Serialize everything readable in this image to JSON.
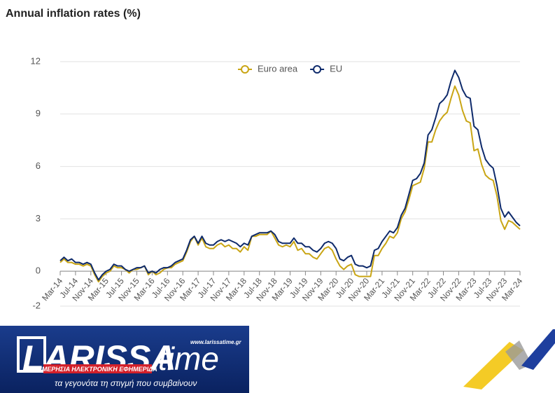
{
  "chart_data": {
    "type": "line",
    "title": "Annual inflation rates (%)",
    "categories": [
      "Mar-14",
      null,
      null,
      null,
      "Jul-14",
      null,
      null,
      null,
      "Nov-14",
      null,
      null,
      null,
      "Mar-15",
      null,
      null,
      null,
      "Jul-15",
      null,
      null,
      null,
      "Nov-15",
      null,
      null,
      null,
      "Mar-16",
      null,
      null,
      null,
      "Jul-16",
      null,
      null,
      null,
      "Nov-16",
      null,
      null,
      null,
      "Mar-17",
      null,
      null,
      null,
      "Jul-17",
      null,
      null,
      null,
      "Nov-17",
      null,
      null,
      null,
      "Mar-18",
      null,
      null,
      null,
      "Jul-18",
      null,
      null,
      null,
      "Nov-18",
      null,
      null,
      null,
      "Mar-19",
      null,
      null,
      null,
      "Jul-19",
      null,
      null,
      null,
      "Nov-19",
      null,
      null,
      null,
      "Mar-20",
      null,
      null,
      null,
      "Jul-20",
      null,
      null,
      null,
      "Nov-20",
      null,
      null,
      null,
      "Mar-21",
      null,
      null,
      null,
      "Jul-21",
      null,
      null,
      null,
      "Nov-21",
      null,
      null,
      null,
      "Mar-22",
      null,
      null,
      null,
      "Jul-22",
      null,
      null,
      null,
      "Nov-22",
      null,
      null,
      null,
      "Mar-23",
      null,
      null,
      null,
      "Jul-23",
      null,
      null,
      null,
      "Nov-23",
      null,
      null,
      null,
      "Mar-24"
    ],
    "series": [
      {
        "name": "Euro area",
        "color": "#c9a514",
        "values": [
          0.5,
          0.7,
          0.5,
          0.5,
          0.4,
          0.4,
          0.3,
          0.4,
          0.3,
          -0.2,
          -0.6,
          -0.3,
          -0.1,
          0.0,
          0.3,
          0.2,
          0.2,
          0.1,
          -0.1,
          0.1,
          0.1,
          0.2,
          0.3,
          -0.2,
          0.0,
          -0.2,
          -0.1,
          0.1,
          0.2,
          0.2,
          0.4,
          0.5,
          0.6,
          1.1,
          1.7,
          2.0,
          1.5,
          1.9,
          1.4,
          1.3,
          1.3,
          1.5,
          1.6,
          1.4,
          1.5,
          1.3,
          1.3,
          1.1,
          1.4,
          1.2,
          2.0,
          2.0,
          2.1,
          2.1,
          2.1,
          2.3,
          1.9,
          1.5,
          1.4,
          1.5,
          1.4,
          1.7,
          1.2,
          1.3,
          1.0,
          1.0,
          0.8,
          0.7,
          1.0,
          1.3,
          1.4,
          1.2,
          0.7,
          0.3,
          0.1,
          0.3,
          0.4,
          -0.2,
          -0.3,
          -0.3,
          -0.3,
          -0.3,
          0.9,
          0.9,
          1.3,
          1.6,
          2.0,
          1.9,
          2.2,
          3.0,
          3.4,
          4.1,
          4.9,
          5.0,
          5.1,
          5.9,
          7.4,
          7.4,
          8.1,
          8.6,
          8.9,
          9.1,
          9.9,
          10.6,
          10.1,
          9.2,
          8.6,
          8.5,
          6.9,
          7.0,
          6.1,
          5.5,
          5.3,
          5.2,
          4.3,
          2.9,
          2.4,
          2.9,
          2.8,
          2.6,
          2.4
        ]
      },
      {
        "name": "EU",
        "color": "#0e2a6b",
        "values": [
          0.6,
          0.8,
          0.6,
          0.7,
          0.5,
          0.5,
          0.4,
          0.5,
          0.4,
          -0.1,
          -0.5,
          -0.2,
          0.0,
          0.1,
          0.4,
          0.3,
          0.3,
          0.1,
          0.0,
          0.1,
          0.2,
          0.2,
          0.3,
          -0.1,
          0.0,
          -0.1,
          0.1,
          0.2,
          0.2,
          0.3,
          0.5,
          0.6,
          0.7,
          1.2,
          1.8,
          2.0,
          1.6,
          2.0,
          1.6,
          1.5,
          1.5,
          1.7,
          1.8,
          1.7,
          1.8,
          1.7,
          1.6,
          1.4,
          1.6,
          1.5,
          2.0,
          2.1,
          2.2,
          2.2,
          2.2,
          2.3,
          2.1,
          1.7,
          1.6,
          1.6,
          1.6,
          1.9,
          1.6,
          1.6,
          1.4,
          1.4,
          1.2,
          1.1,
          1.3,
          1.6,
          1.7,
          1.6,
          1.3,
          0.7,
          0.6,
          0.8,
          0.9,
          0.4,
          0.3,
          0.3,
          0.2,
          0.3,
          1.2,
          1.3,
          1.7,
          2.0,
          2.3,
          2.2,
          2.5,
          3.2,
          3.6,
          4.4,
          5.2,
          5.3,
          5.6,
          6.2,
          7.8,
          8.1,
          8.8,
          9.6,
          9.8,
          10.1,
          10.9,
          11.5,
          11.1,
          10.4,
          10.0,
          9.9,
          8.3,
          8.1,
          7.1,
          6.4,
          6.1,
          5.9,
          4.9,
          3.6,
          3.1,
          3.4,
          3.1,
          2.8,
          2.6
        ]
      }
    ],
    "ylim": [
      -2,
      12
    ],
    "yticks": [
      -2,
      0,
      3,
      6,
      9,
      12
    ],
    "grid": true,
    "legend": "top"
  },
  "watermark": {
    "name": "LARISSA",
    "name2": "time",
    "url": "www.larissatime.gr",
    "subtitle": "ΗΜΕΡΗΣΙΑ ΗΛΕΚΤΡΟΝΙΚΗ ΕΦΗΜΕΡΙΔΑ",
    "slogan": "τα γεγονότα τη στιγμή που συμβαίνουν"
  }
}
